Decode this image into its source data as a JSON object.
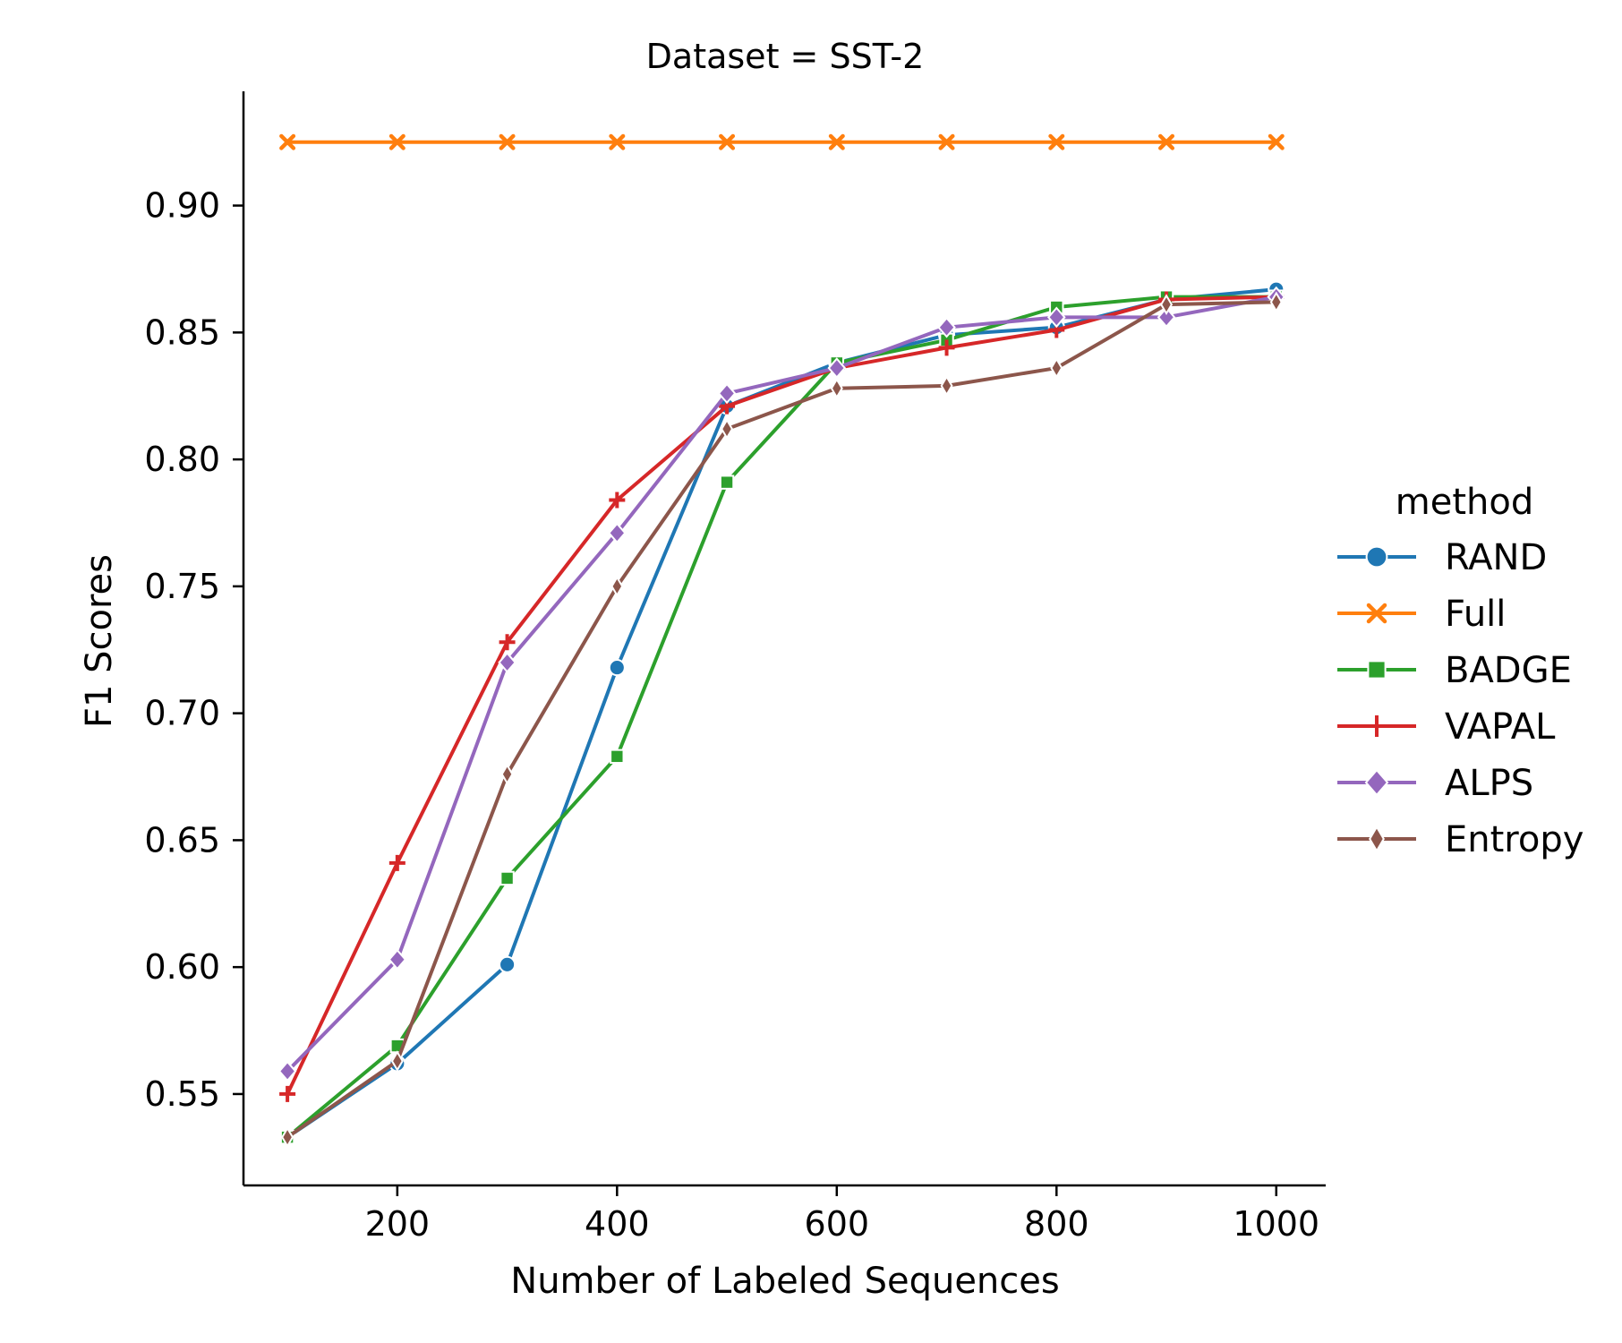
{
  "chart_data": {
    "type": "line",
    "title": "Dataset = SST-2",
    "xlabel": "Number of Labeled Sequences",
    "ylabel": "F1 Scores",
    "xlim": [
      60,
      1045
    ],
    "ylim": [
      0.514,
      0.945
    ],
    "x": [
      100,
      200,
      300,
      400,
      500,
      600,
      700,
      800,
      900,
      1000
    ],
    "xticks": [
      200,
      400,
      600,
      800,
      1000
    ],
    "yticks": [
      0.55,
      0.6,
      0.65,
      0.7,
      0.75,
      0.8,
      0.85,
      0.9
    ],
    "ytick_labels": [
      "0.55",
      "0.60",
      "0.65",
      "0.70",
      "0.75",
      "0.80",
      "0.85",
      "0.90"
    ],
    "grid": false,
    "legend": {
      "title": "method",
      "position": "right"
    },
    "series": [
      {
        "name": "RAND",
        "color": "#1f77b4",
        "marker": "circle",
        "values": [
          0.533,
          0.562,
          0.601,
          0.718,
          0.821,
          0.838,
          0.849,
          0.852,
          0.863,
          0.867
        ]
      },
      {
        "name": "Full",
        "color": "#ff7f0e",
        "marker": "x",
        "values": [
          0.925,
          0.925,
          0.925,
          0.925,
          0.925,
          0.925,
          0.925,
          0.925,
          0.925,
          0.925
        ]
      },
      {
        "name": "BADGE",
        "color": "#2ca02c",
        "marker": "square",
        "values": [
          0.533,
          0.569,
          0.635,
          0.683,
          0.791,
          0.838,
          0.847,
          0.86,
          0.864,
          0.864
        ]
      },
      {
        "name": "VAPAL",
        "color": "#d62728",
        "marker": "plus",
        "values": [
          0.55,
          0.641,
          0.728,
          0.784,
          0.821,
          0.836,
          0.844,
          0.851,
          0.863,
          0.864
        ]
      },
      {
        "name": "ALPS",
        "color": "#9467bd",
        "marker": "diamond",
        "values": [
          0.559,
          0.603,
          0.72,
          0.771,
          0.826,
          0.836,
          0.852,
          0.856,
          0.856,
          0.864
        ]
      },
      {
        "name": "Entropy",
        "color": "#8c564b",
        "marker": "thin-diamond",
        "values": [
          0.533,
          0.563,
          0.676,
          0.75,
          0.812,
          0.828,
          0.829,
          0.836,
          0.861,
          0.862
        ]
      }
    ]
  }
}
